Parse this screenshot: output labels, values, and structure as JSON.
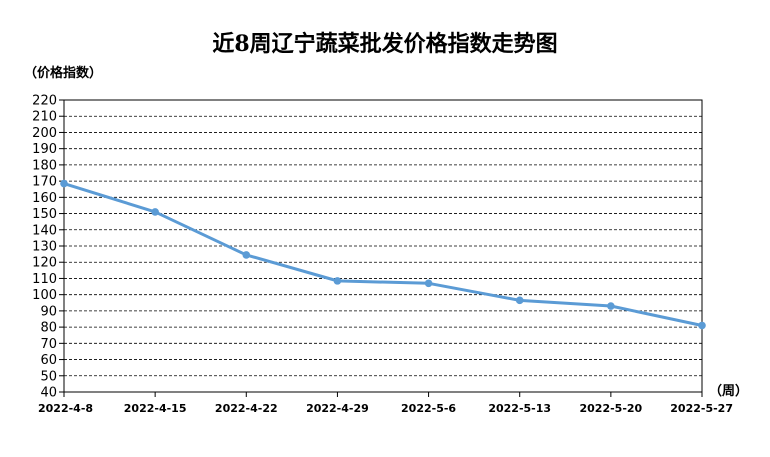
{
  "chart_data": {
    "type": "line",
    "title": "近8周辽宁蔬菜批发价格指数走势图",
    "ylabel": "（价格指数）",
    "xlabel": "（周）",
    "categories": [
      "2022-4-8",
      "2022-4-15",
      "2022-4-22",
      "2022-4-29",
      "2022-5-6",
      "2022-5-13",
      "2022-5-20",
      "2022-5-27"
    ],
    "series": [
      {
        "values": [
          168.5,
          151,
          124.5,
          108.5,
          107,
          96.5,
          93,
          81
        ]
      }
    ],
    "ylim": [
      40,
      220
    ],
    "ytick_step": 10,
    "grid": true,
    "grid_style": "dashed",
    "line_color": "#5b9bd5",
    "marker": "circle"
  }
}
